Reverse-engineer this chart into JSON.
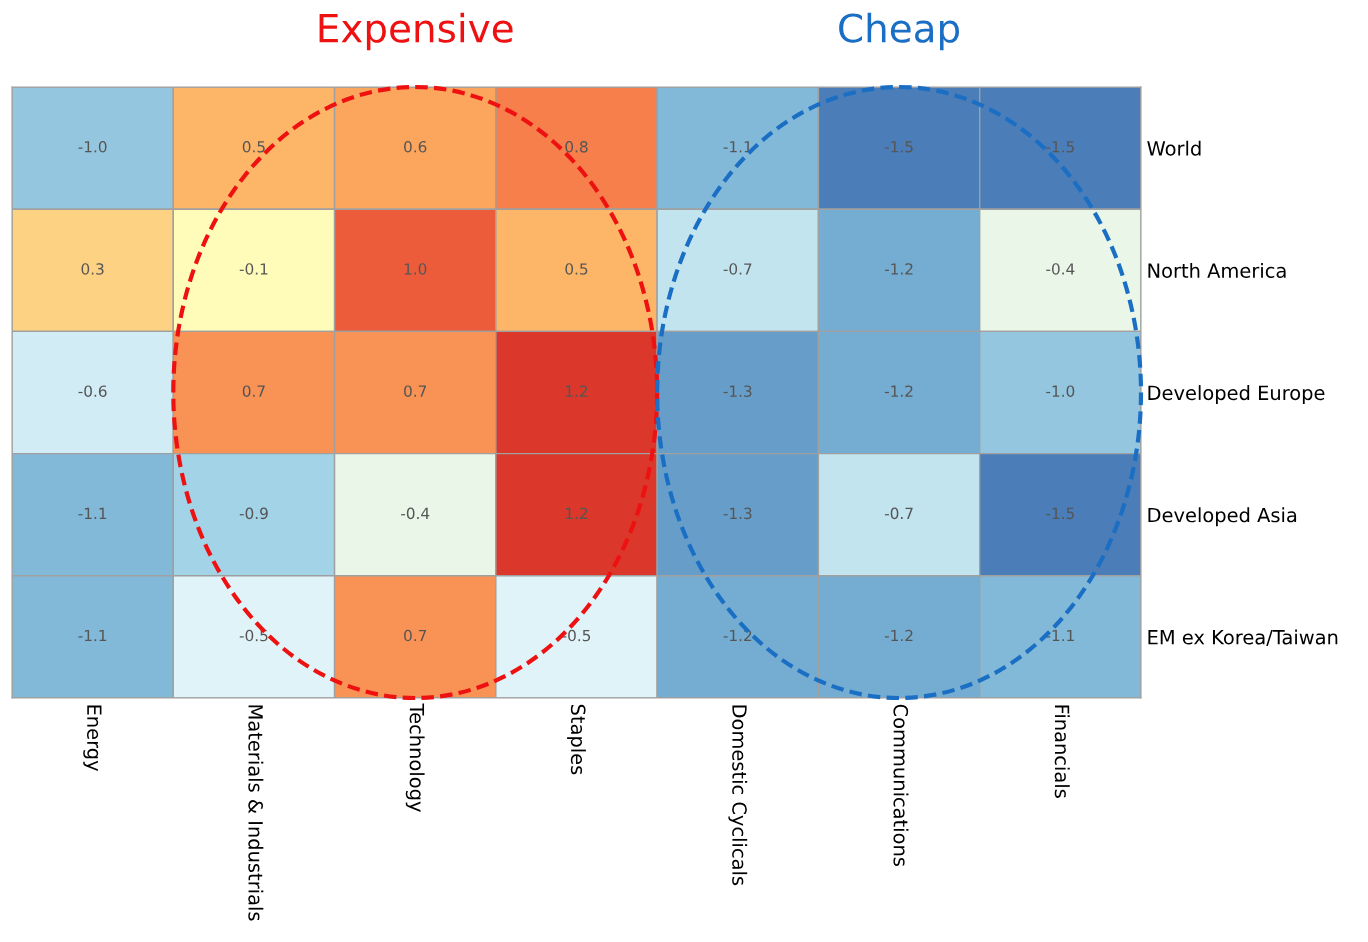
{
  "chart_data": {
    "type": "heatmap",
    "categories": [
      "Energy",
      "Materials & Industrials",
      "Technology",
      "Staples",
      "Domestic Cyclicals",
      "Communications",
      "Financials"
    ],
    "y_categories": [
      "World",
      "North America",
      "Developed Europe",
      "Developed Asia",
      "EM ex Korea/Taiwan"
    ],
    "cells": [
      [
        -1.0,
        0.5,
        0.6,
        0.8,
        -1.1,
        -1.5,
        -1.5
      ],
      [
        0.3,
        -0.1,
        1.0,
        0.5,
        -0.7,
        -1.2,
        -0.4
      ],
      [
        -0.6,
        0.7,
        0.7,
        1.2,
        -1.3,
        -1.2,
        -1.0
      ],
      [
        -1.1,
        -0.9,
        -0.4,
        1.2,
        -1.3,
        -0.7,
        -1.5
      ],
      [
        -1.1,
        -0.5,
        0.7,
        -0.5,
        -1.2,
        -1.2,
        -1.1
      ]
    ],
    "cell_labels": [
      [
        "-1.0",
        "0.5",
        "0.6",
        "0.8",
        "-1.1",
        "-1.5",
        "-1.5"
      ],
      [
        "0.3",
        "-0.1",
        "1.0",
        "0.5",
        "-0.7",
        "-1.2",
        "-0.4"
      ],
      [
        "-0.6",
        "0.7",
        "0.7",
        "1.2",
        "-1.3",
        "-1.2",
        "-1.0"
      ],
      [
        "-1.1",
        "-0.9",
        "-0.4",
        "1.2",
        "-1.3",
        "-0.7",
        "-1.5"
      ],
      [
        "-1.1",
        "-0.5",
        "0.7",
        "-0.5",
        "-1.2",
        "-1.2",
        "-1.1"
      ]
    ],
    "annotations": [
      "Expensive",
      "Cheap"
    ]
  }
}
